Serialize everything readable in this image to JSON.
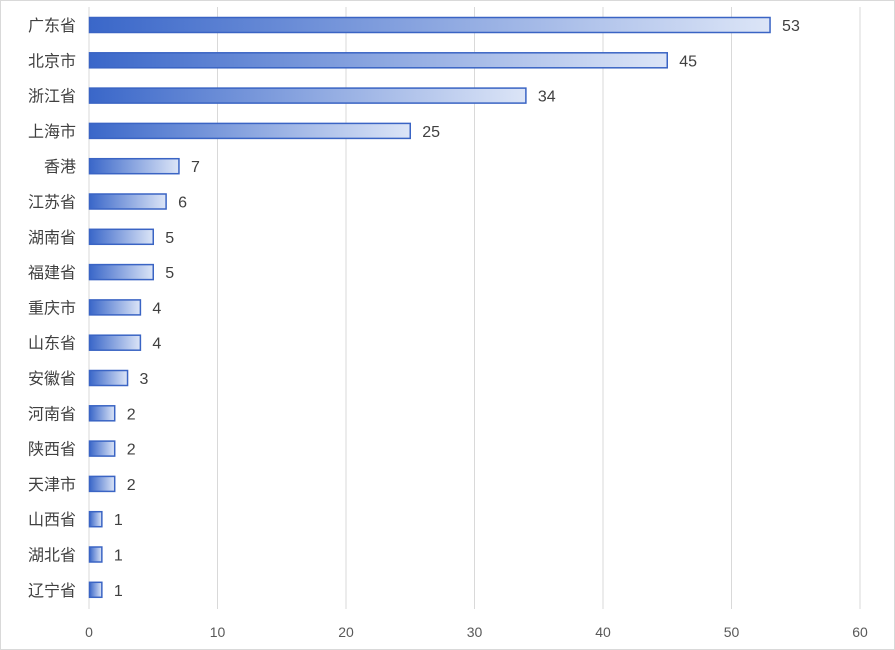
{
  "chart_data": {
    "type": "bar",
    "orientation": "horizontal",
    "title": "",
    "xlabel": "",
    "ylabel": "",
    "categories": [
      "广东省",
      "北京市",
      "浙江省",
      "上海市",
      "香港",
      "江苏省",
      "湖南省",
      "福建省",
      "重庆市",
      "山东省",
      "安徽省",
      "河南省",
      "陕西省",
      "天津市",
      "山西省",
      "湖北省",
      "辽宁省"
    ],
    "values": [
      53,
      45,
      34,
      25,
      7,
      6,
      5,
      5,
      4,
      4,
      3,
      2,
      2,
      2,
      1,
      1,
      1
    ],
    "xlim": [
      0,
      60
    ],
    "xticks": [
      0,
      10,
      20,
      30,
      40,
      50,
      60
    ],
    "grid": true,
    "legend": "none",
    "colors": {
      "bar_start": "#3a67c9",
      "bar_end": "#dce5f7",
      "bar_border": "#3a64c4",
      "grid": "#d9d9d9"
    }
  }
}
